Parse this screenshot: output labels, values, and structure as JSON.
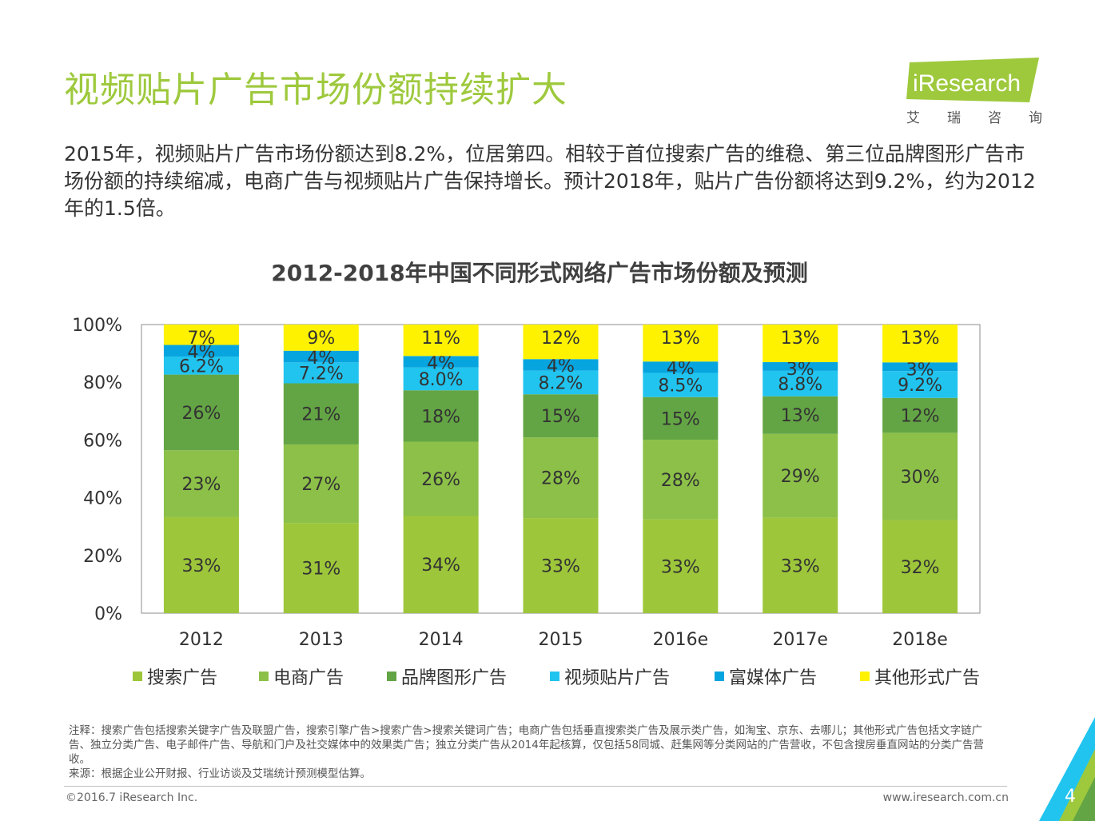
{
  "page": {
    "title": "视频贴片广告市场份额持续扩大",
    "intro": "2015年，视频贴片广告市场份额达到8.2%，位居第四。相较于首位搜索广告的维稳、第三位品牌图形广告市场份额的持续缩减，电商广告与视频贴片广告保持增长。预计2018年，贴片广告份额将达到9.2%，约为2012年的1.5倍。",
    "page_number": "4"
  },
  "logo": {
    "name": "iResearch",
    "cn_chars": [
      "艾",
      "瑞",
      "咨",
      "询"
    ]
  },
  "notes": {
    "line1": "注释：搜索广告包括搜索关键字广告及联盟广告，搜索引擎广告>搜索广告>搜索关键词广告；电商广告包括垂直搜索类广告及展示类广告，如淘宝、京东、去哪儿；其他形式广告包括文字链广告、独立分类广告、电子邮件广告、导航和门户及社交媒体中的效果类广告；独立分类广告从2014年起核算，仅包括58同城、赶集网等分类网站的广告营收，不包含搜房垂直网站的分类广告营收。",
    "line2": "来源：根据企业公开财报、行业访谈及艾瑞统计预测模型估算。"
  },
  "footer": {
    "copyright": "©2016.7 iResearch Inc.",
    "website": "www.iresearch.com.cn"
  },
  "colors": {
    "title_green": "#9ec93d",
    "search": "#9dc63a",
    "ecommerce": "#8cc048",
    "brand": "#63a544",
    "video": "#21c4ef",
    "rich_media": "#07a5df",
    "other": "#fef200"
  },
  "chart_data": {
    "type": "bar",
    "stacked": true,
    "title": "2012-2018年中国不同形式网络广告市场份额及预测",
    "categories": [
      "2012",
      "2013",
      "2014",
      "2015",
      "2016e",
      "2017e",
      "2018e"
    ],
    "ylim": [
      0,
      100
    ],
    "yticks": [
      "0%",
      "20%",
      "40%",
      "60%",
      "80%",
      "100%"
    ],
    "legend_position": "bottom",
    "series": [
      {
        "name": "搜索广告",
        "color": "#9dc63a",
        "values": [
          33,
          31,
          34,
          33,
          33,
          33,
          32
        ],
        "labels": [
          "33%",
          "31%",
          "34%",
          "33%",
          "33%",
          "33%",
          "32%"
        ]
      },
      {
        "name": "电商广告",
        "color": "#8cc048",
        "values": [
          23,
          27,
          26,
          28,
          28,
          29,
          30
        ],
        "labels": [
          "23%",
          "27%",
          "26%",
          "28%",
          "28%",
          "29%",
          "30%"
        ]
      },
      {
        "name": "品牌图形广告",
        "color": "#63a544",
        "values": [
          26,
          21,
          18,
          15,
          15,
          13,
          12
        ],
        "labels": [
          "26%",
          "21%",
          "18%",
          "15%",
          "15%",
          "13%",
          "12%"
        ]
      },
      {
        "name": "视频贴片广告",
        "color": "#21c4ef",
        "values": [
          6.2,
          7.2,
          8.0,
          8.2,
          8.5,
          8.8,
          9.2
        ],
        "labels": [
          "6.2%",
          "7.2%",
          "8.0%",
          "8.2%",
          "8.5%",
          "8.8%",
          "9.2%"
        ]
      },
      {
        "name": "富媒体广告",
        "color": "#07a5df",
        "values": [
          4,
          4,
          4,
          4,
          4,
          3,
          3
        ],
        "labels": [
          "4%",
          "4%",
          "4%",
          "4%",
          "4%",
          "3%",
          "3%"
        ]
      },
      {
        "name": "其他形式广告",
        "color": "#fef200",
        "values": [
          7,
          9,
          11,
          12,
          13,
          13,
          13
        ],
        "labels": [
          "7%",
          "9%",
          "11%",
          "12%",
          "13%",
          "13%",
          "13%"
        ]
      }
    ]
  }
}
